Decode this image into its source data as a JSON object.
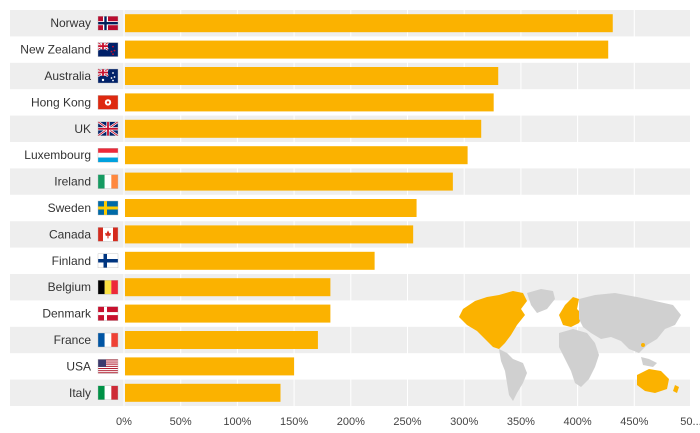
{
  "colors": {
    "bar": "#fbb200",
    "row_band": "#eeeeee",
    "grid": "#ffffff",
    "map_land": "#d0d0d0",
    "map_highlight": "#fbb200"
  },
  "chart_data": {
    "type": "bar",
    "orientation": "horizontal",
    "categories": [
      "Norway",
      "New Zealand",
      "Australia",
      "Hong Kong",
      "UK",
      "Luxembourg",
      "Ireland",
      "Sweden",
      "Canada",
      "Finland",
      "Belgium",
      "Denmark",
      "France",
      "USA",
      "Italy"
    ],
    "flag_icons": [
      "norway-flag-icon",
      "new-zealand-flag-icon",
      "australia-flag-icon",
      "hong-kong-flag-icon",
      "uk-flag-icon",
      "luxembourg-flag-icon",
      "ireland-flag-icon",
      "sweden-flag-icon",
      "canada-flag-icon",
      "finland-flag-icon",
      "belgium-flag-icon",
      "denmark-flag-icon",
      "france-flag-icon",
      "usa-flag-icon",
      "italy-flag-icon"
    ],
    "values": [
      431,
      427,
      330,
      326,
      315,
      303,
      290,
      258,
      255,
      221,
      182,
      182,
      171,
      150,
      138
    ],
    "xticks": [
      "0%",
      "50%",
      "100%",
      "150%",
      "200%",
      "250%",
      "300%",
      "350%",
      "400%",
      "450%",
      "50..."
    ],
    "xlim": [
      0,
      500
    ],
    "grid": true,
    "legend": "none",
    "inset": "world-map"
  }
}
